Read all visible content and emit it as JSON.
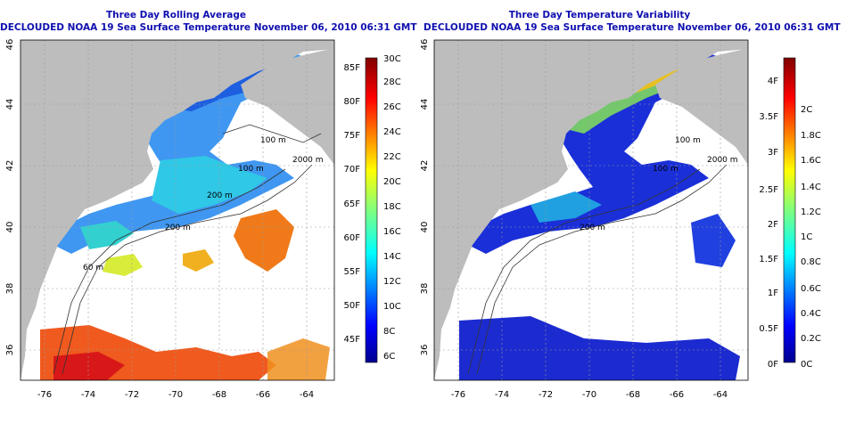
{
  "colors": {
    "land": "#bdbdbd",
    "title": "#1010b0",
    "grid": "#9a9a9a"
  },
  "panels": [
    {
      "title": "Three Day Rolling Average",
      "subtitle": "DECLOUDED NOAA 19 Sea Surface Temperature November 06, 2010 06:31 GMT",
      "x_ticks": [
        "-76",
        "-74",
        "-72",
        "-70",
        "-68",
        "-66",
        "-64"
      ],
      "y_ticks": [
        "36",
        "38",
        "40",
        "42",
        "44",
        "46"
      ],
      "isobath_labels": [
        "100 m",
        "2000 m",
        "100 m",
        "200 m",
        "60 m",
        "200 m"
      ],
      "colorbar": {
        "scheme": "jet",
        "left_labels": [
          "45F",
          "50F",
          "55F",
          "60F",
          "65F",
          "70F",
          "75F",
          "80F",
          "85F"
        ],
        "right_labels": [
          "6C",
          "8C",
          "10C",
          "12C",
          "14C",
          "16C",
          "18C",
          "20C",
          "22C",
          "24C",
          "26C",
          "28C",
          "30C"
        ]
      }
    },
    {
      "title": "Three Day Temperature Variability",
      "subtitle": "DECLOUDED NOAA 19 Sea Surface Temperature November 06, 2010 06:31 GMT",
      "x_ticks": [
        "-76",
        "-74",
        "-72",
        "-70",
        "-68",
        "-66",
        "-64"
      ],
      "y_ticks": [
        "36",
        "38",
        "40",
        "42",
        "44",
        "46"
      ],
      "isobath_labels": [
        "100 m",
        "2000 m",
        "100 m",
        "200 m"
      ],
      "colorbar": {
        "scheme": "jet",
        "left_labels": [
          "0F",
          "0.5F",
          "1F",
          "1.5F",
          "2F",
          "2.5F",
          "3F",
          "3.5F",
          "4F"
        ],
        "right_labels": [
          "0C",
          "0.2C",
          "0.4C",
          "0.6C",
          "0.8C",
          "1C",
          "1.2C",
          "1.4C",
          "1.6C",
          "1.8C",
          "2C"
        ]
      }
    }
  ]
}
